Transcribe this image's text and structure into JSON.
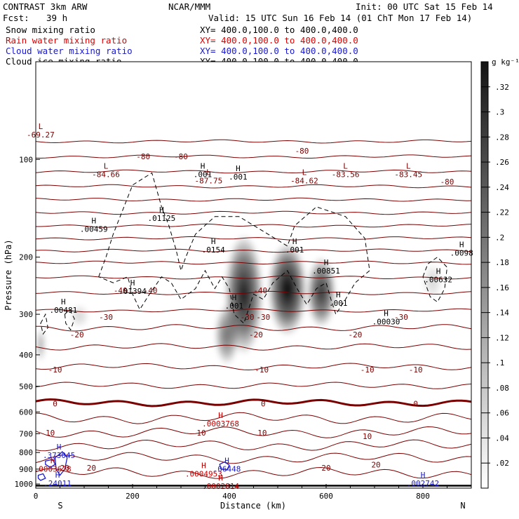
{
  "header": {
    "project": "CONTRAST  3km ARW",
    "center": "NCAR/MMM",
    "init": "Init: 00 UTC Sat 15 Feb 14",
    "fcst_label": "Fcst:",
    "fcst_value": "39 h",
    "valid": "Valid: 15 UTC Sun 16 Feb 14 (01 ChT Mon 17 Feb 14)"
  },
  "fields": [
    {
      "name": "Snow mixing ratio",
      "xy": "XY= 400.0,100.0 to 400.0,400.0",
      "color": "#000000"
    },
    {
      "name": "Rain water mixing ratio",
      "xy": "XY= 400.0,100.0 to 400.0,400.0",
      "color": "#e00000"
    },
    {
      "name": "Cloud water mixing ratio",
      "xy": "XY= 400.0,100.0 to 400.0,400.0",
      "color": "#1a1acc"
    },
    {
      "name": "Cloud ice mixing ratio",
      "xy": "XY= 400.0,100.0 to 400.0,400.0",
      "color": "#000000"
    }
  ],
  "chart_data": {
    "type": "cross-section",
    "xlabel": "Distance (km)",
    "ylabel": "Pressure (hPa)",
    "x_ticks": [
      0,
      200,
      400,
      600,
      800
    ],
    "xlim": [
      0,
      900
    ],
    "y_ticks": [
      100,
      200,
      300,
      400,
      500,
      600,
      700,
      800,
      900,
      1000
    ],
    "ylim": [
      1030,
      50
    ],
    "y_scale": "pressure-log",
    "end_labels": {
      "left": "S",
      "right": "N"
    },
    "colorbar": {
      "unit": "g kg⁻¹",
      "ticks": [
        0.02,
        0.04,
        0.06,
        0.08,
        0.1,
        0.12,
        0.14,
        0.16,
        0.18,
        0.2,
        0.22,
        0.24,
        0.26,
        0.28,
        0.3,
        0.32
      ],
      "tick_labels": [
        ".02",
        ".04",
        ".06",
        ".08",
        ".1",
        ".12",
        ".14",
        ".16",
        ".18",
        ".2",
        ".22",
        ".24",
        ".26",
        ".28",
        ".3",
        ".32"
      ],
      "range": [
        0,
        0.34
      ]
    },
    "temperature_contours": {
      "color": "#7a0000",
      "interval_c": 5,
      "levels_c": [
        -85,
        -80,
        -75,
        -70,
        -65,
        -60,
        -55,
        -50,
        -45,
        -40,
        -35,
        -30,
        -25,
        -20,
        -15,
        -10,
        -5,
        0,
        5,
        10,
        15,
        20,
        25
      ],
      "levels_hpa": [
        88,
        98,
        109,
        121,
        133,
        146,
        160,
        175,
        191,
        208,
        231,
        258,
        292,
        330,
        378,
        435,
        497,
        562,
        627,
        693,
        760,
        832,
        925
      ],
      "labels": [
        {
          "text": "-80",
          "x": 222,
          "p": 98
        },
        {
          "text": "-80",
          "x": 300,
          "p": 98
        },
        {
          "text": "-80",
          "x": 550,
          "p": 94
        },
        {
          "text": "-80",
          "x": 850,
          "p": 117
        },
        {
          "text": "-40",
          "x": 175,
          "p": 253
        },
        {
          "text": "-40",
          "x": 237,
          "p": 253
        },
        {
          "text": "-40",
          "x": 464,
          "p": 253
        },
        {
          "text": "-30",
          "x": 145,
          "p": 306
        },
        {
          "text": "-30",
          "x": 437,
          "p": 306
        },
        {
          "text": "-30",
          "x": 470,
          "p": 306
        },
        {
          "text": "-30",
          "x": 755,
          "p": 306
        },
        {
          "text": "-20",
          "x": 85,
          "p": 346
        },
        {
          "text": "-20",
          "x": 455,
          "p": 346
        },
        {
          "text": "-20",
          "x": 660,
          "p": 346
        },
        {
          "text": "-10",
          "x": 40,
          "p": 444
        },
        {
          "text": "-10",
          "x": 467,
          "p": 444
        },
        {
          "text": "-10",
          "x": 685,
          "p": 444
        },
        {
          "text": "-10",
          "x": 785,
          "p": 444
        },
        {
          "text": "0",
          "x": 40,
          "p": 566
        },
        {
          "text": "0",
          "x": 470,
          "p": 566
        },
        {
          "text": "0",
          "x": 785,
          "p": 566
        },
        {
          "text": "10",
          "x": 30,
          "p": 695
        },
        {
          "text": "10",
          "x": 342,
          "p": 695
        },
        {
          "text": "10",
          "x": 468,
          "p": 695
        },
        {
          "text": "10",
          "x": 685,
          "p": 712
        },
        {
          "text": "20",
          "x": 60,
          "p": 892
        },
        {
          "text": "20",
          "x": 115,
          "p": 892
        },
        {
          "text": "20",
          "x": 600,
          "p": 892
        },
        {
          "text": "20",
          "x": 703,
          "p": 871
        }
      ]
    },
    "extrema_labels": [
      {
        "type": "L",
        "value": "-69.27",
        "x": 10,
        "p": 83,
        "color": "#7a0000"
      },
      {
        "type": "L",
        "value": "-84.66",
        "x": 145,
        "p": 110,
        "color": "#7a0000"
      },
      {
        "type": "L",
        "value": "-87.75",
        "x": 357,
        "p": 115,
        "color": "#7a0000"
      },
      {
        "type": "L",
        "value": "-84.62",
        "x": 555,
        "p": 115,
        "color": "#7a0000"
      },
      {
        "type": "L",
        "value": "-83.56",
        "x": 640,
        "p": 110,
        "color": "#7a0000"
      },
      {
        "type": "L",
        "value": "-83.45",
        "x": 770,
        "p": 110,
        "color": "#7a0000"
      },
      {
        "type": "H",
        "value": ".001",
        "x": 345,
        "p": 110,
        "color": "#000000"
      },
      {
        "type": "H",
        "value": ".001",
        "x": 418,
        "p": 112,
        "color": "#000000"
      },
      {
        "type": "H",
        "value": ".00459",
        "x": 120,
        "p": 162,
        "color": "#000000"
      },
      {
        "type": "H",
        "value": ".01125",
        "x": 260,
        "p": 150,
        "color": "#000000"
      },
      {
        "type": "H",
        "value": ".0154",
        "x": 367,
        "p": 188,
        "color": "#000000"
      },
      {
        "type": "H",
        "value": ".001",
        "x": 535,
        "p": 188,
        "color": "#000000"
      },
      {
        "type": "H",
        "value": ".00851",
        "x": 600,
        "p": 218,
        "color": "#000000"
      },
      {
        "type": "H",
        "value": ".001",
        "x": 625,
        "p": 274,
        "color": "#000000"
      },
      {
        "type": "H",
        "value": ".00030",
        "x": 724,
        "p": 313,
        "color": "#000000"
      },
      {
        "type": "H",
        "value": ".00481",
        "x": 57,
        "p": 288,
        "color": "#000000"
      },
      {
        "type": "H",
        "value": ".01394",
        "x": 200,
        "p": 252,
        "color": "#000000"
      },
      {
        "type": "H",
        "value": ".001",
        "x": 410,
        "p": 280,
        "color": "#000000"
      },
      {
        "type": "H",
        "value": ".00632",
        "x": 832,
        "p": 232,
        "color": "#000000"
      },
      {
        "type": "H",
        "value": ".0098",
        "x": 880,
        "p": 192,
        "color": "#000000"
      },
      {
        "type": "H",
        "value": ".0003768",
        "x": 382,
        "p": 645,
        "color": "#c00000"
      },
      {
        "type": "H",
        "value": ".0004953",
        "x": 347,
        "p": 920,
        "color": "#c00000"
      },
      {
        "type": "H",
        "value": ".0002814",
        "x": 382,
        "p": 1005,
        "color": "#c00000"
      },
      {
        "type": "H",
        "value": ".0003678",
        "x": 35,
        "p": 890,
        "color": "#c00000"
      },
      {
        "type": "H",
        "value": ".373045",
        "x": 48,
        "p": 808,
        "color": "#1a1acc"
      },
      {
        "type": "H",
        "value": ".06448",
        "x": 395,
        "p": 890,
        "color": "#1a1acc"
      },
      {
        "type": "H",
        "value": ".24011",
        "x": 45,
        "p": 985,
        "color": "#1a1acc"
      },
      {
        "type": "H",
        "value": ".002742",
        "x": 800,
        "p": 985,
        "color": "#1a1acc"
      }
    ],
    "snow_shading": [
      {
        "x": [
          390,
          470
        ],
        "p": [
          170,
          400
        ],
        "max": 0.22
      },
      {
        "x": [
          480,
          560
        ],
        "p": [
          180,
          350
        ],
        "max": 0.26
      },
      {
        "x": [
          560,
          620
        ],
        "p": [
          200,
          330
        ],
        "max": 0.2
      },
      {
        "x": [
          370,
          420
        ],
        "p": [
          280,
          430
        ],
        "max": 0.14
      },
      {
        "x": [
          0,
          20
        ],
        "p": [
          330,
          420
        ],
        "max": 0.08
      },
      {
        "x": [
          70,
          110
        ],
        "p": [
          280,
          330
        ],
        "max": 0.04
      },
      {
        "x": [
          800,
          840
        ],
        "p": [
          210,
          270
        ],
        "max": 0.04
      }
    ]
  }
}
